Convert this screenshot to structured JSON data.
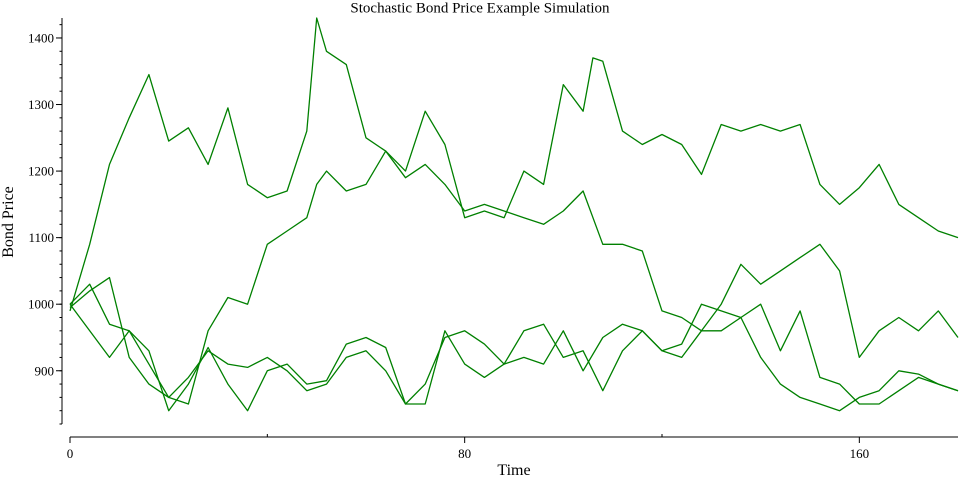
{
  "chart_data": {
    "type": "line",
    "title": "Stochastic Bond Price Example Simulation",
    "xlabel": "Time",
    "ylabel": "Bond Price",
    "xlim": [
      0,
      180
    ],
    "ylim": [
      820,
      1430
    ],
    "x_ticks": [
      0,
      80,
      160
    ],
    "x_minor_ticks": [
      40,
      120
    ],
    "y_ticks": [
      900,
      1000,
      1100,
      1200,
      1300,
      1400
    ],
    "y_minor_step": 20,
    "grid": false,
    "legend": "none",
    "line_color": "#008000",
    "series": [
      {
        "x": [
          0,
          4,
          8,
          12,
          16,
          20,
          24,
          28,
          32,
          36,
          40,
          44,
          48,
          50,
          52,
          56,
          60,
          64,
          68,
          72,
          76,
          80,
          84,
          88,
          92,
          96,
          100,
          104,
          106,
          108,
          112,
          116,
          120,
          124,
          128,
          132,
          136,
          140,
          144,
          148,
          152,
          156,
          160,
          164,
          168,
          172,
          176,
          180
        ],
        "values": [
          990,
          1090,
          1210,
          1280,
          1345,
          1245,
          1265,
          1210,
          1295,
          1180,
          1160,
          1170,
          1260,
          1430,
          1380,
          1360,
          1250,
          1230,
          1200,
          1290,
          1240,
          1130,
          1140,
          1130,
          1200,
          1180,
          1330,
          1290,
          1370,
          1365,
          1260,
          1240,
          1255,
          1240,
          1195,
          1270,
          1260,
          1270,
          1260,
          1270,
          1180,
          1150,
          1175,
          1210,
          1150,
          1130,
          1110,
          1100
        ]
      },
      {
        "x": [
          0,
          4,
          8,
          12,
          16,
          20,
          24,
          28,
          32,
          36,
          40,
          44,
          48,
          50,
          52,
          56,
          60,
          64,
          68,
          72,
          76,
          80,
          84,
          88,
          92,
          96,
          100,
          104,
          108,
          112,
          116,
          120,
          124,
          128,
          132,
          136,
          140,
          144,
          148,
          152,
          156,
          160,
          164,
          168,
          172,
          176,
          180
        ],
        "values": [
          1000,
          1030,
          970,
          960,
          910,
          860,
          850,
          960,
          1010,
          1000,
          1090,
          1110,
          1130,
          1180,
          1200,
          1170,
          1180,
          1230,
          1190,
          1210,
          1180,
          1140,
          1150,
          1140,
          1130,
          1120,
          1140,
          1170,
          1090,
          1090,
          1080,
          990,
          980,
          960,
          1000,
          1060,
          1030,
          1050,
          1070,
          1090,
          1050,
          920,
          960,
          980,
          960,
          990,
          950
        ]
      },
      {
        "x": [
          0,
          4,
          8,
          12,
          16,
          20,
          24,
          28,
          32,
          36,
          40,
          44,
          48,
          52,
          56,
          60,
          64,
          68,
          72,
          76,
          80,
          84,
          88,
          92,
          96,
          100,
          104,
          108,
          112,
          116,
          120,
          124,
          128,
          132,
          136,
          140,
          144,
          148,
          152,
          156,
          160,
          164,
          168,
          172,
          176,
          180
        ],
        "values": [
          1000,
          960,
          920,
          960,
          930,
          840,
          880,
          935,
          880,
          840,
          900,
          910,
          880,
          885,
          940,
          950,
          935,
          850,
          850,
          960,
          910,
          890,
          910,
          960,
          970,
          920,
          930,
          870,
          930,
          960,
          930,
          920,
          960,
          960,
          980,
          920,
          880,
          860,
          850,
          840,
          860,
          870,
          900,
          895,
          880,
          870
        ]
      },
      {
        "x": [
          0,
          4,
          8,
          12,
          16,
          20,
          24,
          28,
          32,
          36,
          40,
          44,
          48,
          52,
          56,
          60,
          64,
          68,
          72,
          76,
          80,
          84,
          88,
          92,
          96,
          100,
          104,
          108,
          112,
          116,
          120,
          124,
          128,
          132,
          136,
          140,
          144,
          148,
          152,
          156,
          160,
          164,
          168,
          172,
          176,
          180
        ],
        "values": [
          995,
          1020,
          1040,
          920,
          880,
          860,
          890,
          930,
          910,
          905,
          920,
          900,
          870,
          880,
          920,
          930,
          900,
          850,
          880,
          950,
          960,
          940,
          910,
          920,
          910,
          960,
          900,
          950,
          970,
          960,
          930,
          940,
          1000,
          990,
          980,
          1000,
          930,
          990,
          890,
          880,
          850,
          850,
          870,
          890,
          880,
          870
        ]
      }
    ]
  }
}
